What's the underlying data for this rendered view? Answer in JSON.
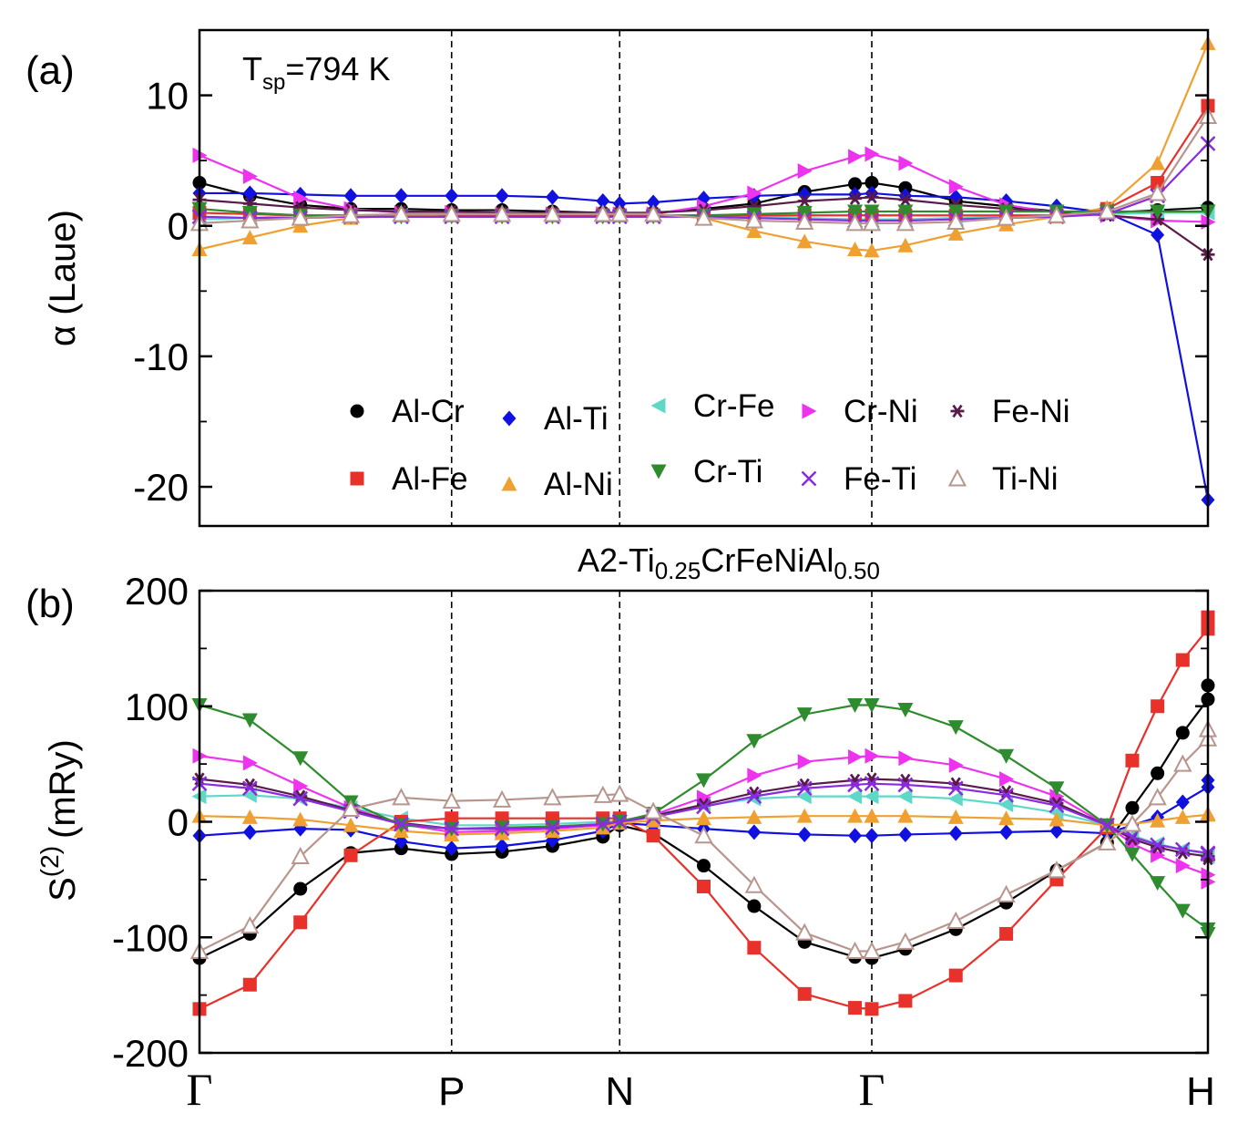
{
  "figure_title": "A2-Ti0.25CrFeNiAl0.50",
  "figure_title_parts": {
    "pre": "A2-Ti",
    "sub1": "0.25",
    "mid": "CrFeNiAl",
    "sub2": "0.50"
  },
  "kpath": {
    "labels": [
      "Γ",
      "P",
      "N",
      "Γ",
      "H"
    ],
    "positions": [
      0,
      3,
      5,
      8,
      12
    ],
    "x": [
      0,
      0.6,
      1.2,
      1.8,
      2.4,
      3,
      3.6,
      4.2,
      4.8,
      5,
      5.4,
      6,
      6.6,
      7.2,
      7.8,
      8,
      8.4,
      9,
      9.6,
      10.2,
      10.8,
      11.4,
      12
    ]
  },
  "chart_data": [
    {
      "type": "line",
      "panel_label": "(a)",
      "ylabel": "α (Laue)",
      "annotation": {
        "text_main": "T",
        "text_sub": "sp",
        "text_rest": "=794 K"
      },
      "ylim": [
        -23,
        15
      ],
      "yticks": [
        10,
        0,
        -10,
        -20
      ],
      "ytick_labels": [
        "10",
        "0",
        "-10",
        "-20"
      ],
      "series": [
        {
          "name": "Al-Cr",
          "color": "#000000",
          "marker": "circle",
          "values": [
            3.3,
            2.3,
            1.6,
            1.3,
            1.3,
            1.2,
            1.2,
            1.1,
            1.0,
            1.0,
            1.0,
            1.3,
            1.7,
            2.6,
            3.2,
            3.3,
            2.9,
            1.9,
            1.5,
            1.1,
            1.0,
            1.2,
            1.4
          ]
        },
        {
          "name": "Al-Ti",
          "color": "#1010e0",
          "marker": "diamond",
          "values": [
            2.5,
            2.5,
            2.4,
            2.3,
            2.3,
            2.3,
            2.3,
            2.2,
            1.9,
            1.7,
            1.8,
            2.1,
            2.3,
            2.4,
            2.4,
            2.5,
            2.3,
            2.2,
            1.9,
            1.5,
            1.0,
            -0.7,
            -21
          ]
        },
        {
          "name": "Cr-Fe",
          "color": "#5fd8c8",
          "marker": "tri-left",
          "values": [
            0.5,
            0.6,
            0.8,
            0.8,
            0.8,
            0.8,
            0.8,
            0.8,
            0.8,
            0.8,
            0.8,
            0.8,
            0.7,
            0.6,
            0.5,
            0.5,
            0.5,
            0.6,
            0.7,
            0.8,
            0.9,
            1.0,
            1.0
          ]
        },
        {
          "name": "Cr-Ni",
          "color": "#ee33ee",
          "marker": "tri-right",
          "values": [
            5.4,
            3.8,
            2.1,
            1.3,
            1.0,
            1.0,
            0.9,
            0.9,
            0.9,
            0.9,
            0.9,
            1.5,
            2.5,
            4.2,
            5.3,
            5.5,
            4.8,
            3.0,
            1.6,
            1.0,
            0.8,
            0.4,
            0.3
          ]
        },
        {
          "name": "Fe-Ni",
          "color": "#5a1a4a",
          "marker": "asterisk",
          "values": [
            2.0,
            1.7,
            1.4,
            1.2,
            1.1,
            1.1,
            1.0,
            1.0,
            1.0,
            1.0,
            1.0,
            1.2,
            1.5,
            1.9,
            2.1,
            2.2,
            2.0,
            1.6,
            1.3,
            1.1,
            0.8,
            0.5,
            -2.2
          ]
        },
        {
          "name": "Al-Fe",
          "color": "#e8312a",
          "marker": "square",
          "values": [
            1.0,
            0.9,
            0.8,
            0.8,
            0.8,
            0.8,
            0.8,
            0.8,
            0.8,
            0.8,
            0.8,
            0.8,
            0.8,
            0.8,
            0.8,
            0.8,
            0.8,
            0.8,
            0.8,
            0.8,
            1.3,
            3.3,
            9.2
          ]
        },
        {
          "name": "Al-Ni",
          "color": "#f0a030",
          "marker": "tri-up",
          "values": [
            -1.8,
            -0.9,
            0.0,
            0.6,
            0.8,
            0.9,
            0.9,
            0.9,
            0.9,
            0.9,
            0.9,
            0.6,
            -0.4,
            -1.2,
            -1.8,
            -1.9,
            -1.5,
            -0.6,
            0.1,
            0.7,
            1.4,
            4.8,
            14
          ]
        },
        {
          "name": "Cr-Ti",
          "color": "#2e8b2e",
          "marker": "tri-down",
          "values": [
            1.3,
            1.0,
            0.8,
            0.7,
            0.7,
            0.7,
            0.7,
            0.7,
            0.7,
            0.7,
            0.7,
            0.8,
            0.9,
            1.0,
            1.1,
            1.1,
            1.1,
            1.1,
            1.1,
            1.1,
            1.1,
            1.1,
            1.1
          ]
        },
        {
          "name": "Fe-Ti",
          "color": "#8a2be2",
          "marker": "x",
          "values": [
            0.7,
            0.6,
            0.6,
            0.7,
            0.7,
            0.7,
            0.7,
            0.7,
            0.7,
            0.7,
            0.7,
            0.7,
            0.6,
            0.5,
            0.4,
            0.4,
            0.4,
            0.5,
            0.6,
            0.7,
            0.9,
            2.3,
            6.3
          ]
        },
        {
          "name": "Ti-Ni",
          "color": "#b8968e",
          "marker": "open-tri-up",
          "values": [
            0.2,
            0.4,
            0.6,
            0.8,
            0.9,
            0.9,
            0.9,
            0.9,
            0.9,
            0.9,
            0.9,
            0.6,
            0.4,
            0.3,
            0.2,
            0.2,
            0.2,
            0.3,
            0.6,
            0.8,
            1.1,
            2.5,
            8.4
          ]
        }
      ]
    },
    {
      "type": "line",
      "panel_label": "(b)",
      "ylabel": "S(2) (mRy)",
      "ylabel_main": "S",
      "ylabel_sup": "(2)",
      "ylabel_unit": "(mRy)",
      "ylim": [
        -200,
        200
      ],
      "yticks": [
        200,
        100,
        0,
        -100,
        -200
      ],
      "ytick_labels": [
        "200",
        "100",
        "0",
        "-100",
        "-200"
      ],
      "series": [
        {
          "name": "Al-Cr",
          "color": "#000000",
          "marker": "circle",
          "values": [
            -118,
            -97,
            -58,
            -27,
            -23,
            -28,
            -26,
            -21,
            -13,
            -3,
            -10,
            -38,
            -73,
            -104,
            -117,
            -118,
            -110,
            -93,
            -70,
            -42,
            -18,
            12,
            42,
            77,
            106,
            118
          ]
        },
        {
          "name": "Al-Ti",
          "color": "#1010e0",
          "marker": "diamond",
          "values": [
            -12,
            -9,
            -6,
            -7,
            -17,
            -23,
            -21,
            -16,
            -8,
            -1,
            -3,
            -6,
            -9,
            -11,
            -12,
            -12,
            -11,
            -10,
            -9,
            -8,
            -10,
            -3,
            4,
            17,
            30,
            36
          ]
        },
        {
          "name": "Cr-Fe",
          "color": "#5fd8c8",
          "marker": "tri-left",
          "values": [
            22,
            23,
            20,
            12,
            3,
            -3,
            -3,
            -2,
            0,
            1,
            6,
            14,
            20,
            22,
            22,
            22,
            22,
            20,
            15,
            8,
            -3,
            -12,
            -19,
            -24,
            -28,
            -30
          ]
        },
        {
          "name": "Cr-Ni",
          "color": "#ee33ee",
          "marker": "tri-right",
          "values": [
            57,
            51,
            31,
            12,
            -2,
            -9,
            -8,
            -6,
            -3,
            0,
            6,
            21,
            40,
            52,
            56,
            57,
            55,
            49,
            37,
            22,
            -3,
            -19,
            -29,
            -38,
            -46,
            -52
          ]
        },
        {
          "name": "Fe-Ni",
          "color": "#5a1a4a",
          "marker": "asterisk",
          "values": [
            37,
            32,
            22,
            10,
            -1,
            -6,
            -6,
            -5,
            -2,
            0,
            5,
            15,
            25,
            32,
            36,
            37,
            36,
            33,
            26,
            16,
            -3,
            -15,
            -22,
            -27,
            -30,
            -32
          ]
        },
        {
          "name": "Al-Fe",
          "color": "#e8312a",
          "marker": "square",
          "values": [
            -162,
            -141,
            -87,
            -29,
            0,
            3,
            3,
            3,
            3,
            3,
            -12,
            -56,
            -109,
            -149,
            -161,
            -162,
            -155,
            -133,
            -97,
            -50,
            -5,
            53,
            100,
            140,
            167,
            177
          ]
        },
        {
          "name": "Al-Ni",
          "color": "#f0a030",
          "marker": "tri-up",
          "values": [
            5,
            4,
            2,
            -3,
            -8,
            -11,
            -10,
            -8,
            -5,
            -1,
            1,
            3,
            4,
            5,
            5,
            5,
            5,
            4,
            3,
            2,
            -3,
            -2,
            1,
            4,
            6,
            7
          ]
        },
        {
          "name": "Cr-Ti",
          "color": "#2e8b2e",
          "marker": "tri-down",
          "values": [
            101,
            88,
            55,
            17,
            -3,
            -6,
            -5,
            -4,
            -2,
            0,
            7,
            36,
            70,
            93,
            101,
            101,
            97,
            82,
            57,
            29,
            -3,
            -28,
            -53,
            -77,
            -93,
            -97
          ]
        },
        {
          "name": "Fe-Ti",
          "color": "#8a2be2",
          "marker": "x",
          "values": [
            33,
            29,
            20,
            9,
            -2,
            -6,
            -6,
            -5,
            -2,
            0,
            4,
            13,
            22,
            29,
            32,
            33,
            32,
            29,
            23,
            14,
            -3,
            -13,
            -20,
            -24,
            -27,
            -28
          ]
        },
        {
          "name": "Ti-Ni",
          "color": "#b8968e",
          "marker": "open-tri-up",
          "values": [
            -112,
            -90,
            -30,
            11,
            21,
            18,
            19,
            21,
            23,
            24,
            9,
            -12,
            -55,
            -96,
            -112,
            -112,
            -104,
            -86,
            -63,
            -42,
            -18,
            -2,
            21,
            50,
            72,
            80
          ]
        }
      ],
      "x": [
        0,
        0.6,
        1.2,
        1.8,
        2.4,
        3,
        3.6,
        4.2,
        4.8,
        5,
        5.4,
        6,
        6.6,
        7.2,
        7.8,
        8,
        8.4,
        9,
        9.6,
        10.2,
        10.8,
        11.1,
        11.4,
        11.7,
        12,
        12
      ]
    }
  ],
  "legend": {
    "rows": [
      [
        "Al-Cr",
        "Al-Ti",
        "Cr-Fe",
        "Cr-Ni",
        "Fe-Ni"
      ],
      [
        "Al-Fe",
        "Al-Ni",
        "Cr-Ti",
        "Fe-Ti",
        "Ti-Ni"
      ]
    ]
  }
}
